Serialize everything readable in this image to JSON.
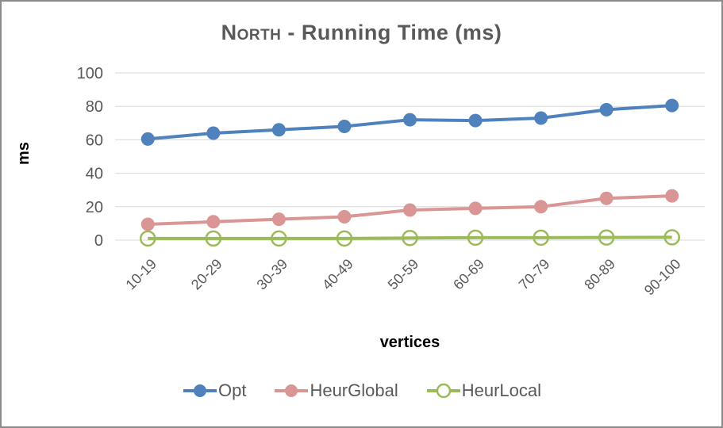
{
  "chart_data": {
    "type": "line",
    "title": "North - Running Time (ms)",
    "title_smallcaps": "North",
    "title_rest": " - Running Time (ms)",
    "xlabel": "vertices",
    "ylabel": "ms",
    "categories": [
      "10-19",
      "20-29",
      "30-39",
      "40-49",
      "50-59",
      "60-69",
      "70-79",
      "80-89",
      "90-100"
    ],
    "series": [
      {
        "name": "Opt",
        "color": "#4F81BD",
        "marker": "filled-circle",
        "values": [
          60.5,
          64,
          66,
          68,
          72,
          71.5,
          73,
          78,
          80.5
        ]
      },
      {
        "name": "HeurGlobal",
        "color": "#D99694",
        "marker": "filled-circle",
        "values": [
          9.5,
          11,
          12.5,
          14,
          18,
          19,
          20,
          25,
          26.5
        ]
      },
      {
        "name": "HeurLocal",
        "color": "#9BBB59",
        "marker": "hollow-circle",
        "values": [
          1,
          1,
          1,
          1,
          1.3,
          1.5,
          1.5,
          1.6,
          1.7
        ]
      }
    ],
    "ylim": [
      0,
      100
    ],
    "yticks": [
      0,
      20,
      40,
      60,
      80,
      100
    ],
    "grid": "horizontal",
    "legend_position": "bottom",
    "colors": {
      "text": "#595959",
      "gridline": "#D9D9D9",
      "frame_border": "#8A8A8A",
      "axis_title": "#000000"
    }
  }
}
